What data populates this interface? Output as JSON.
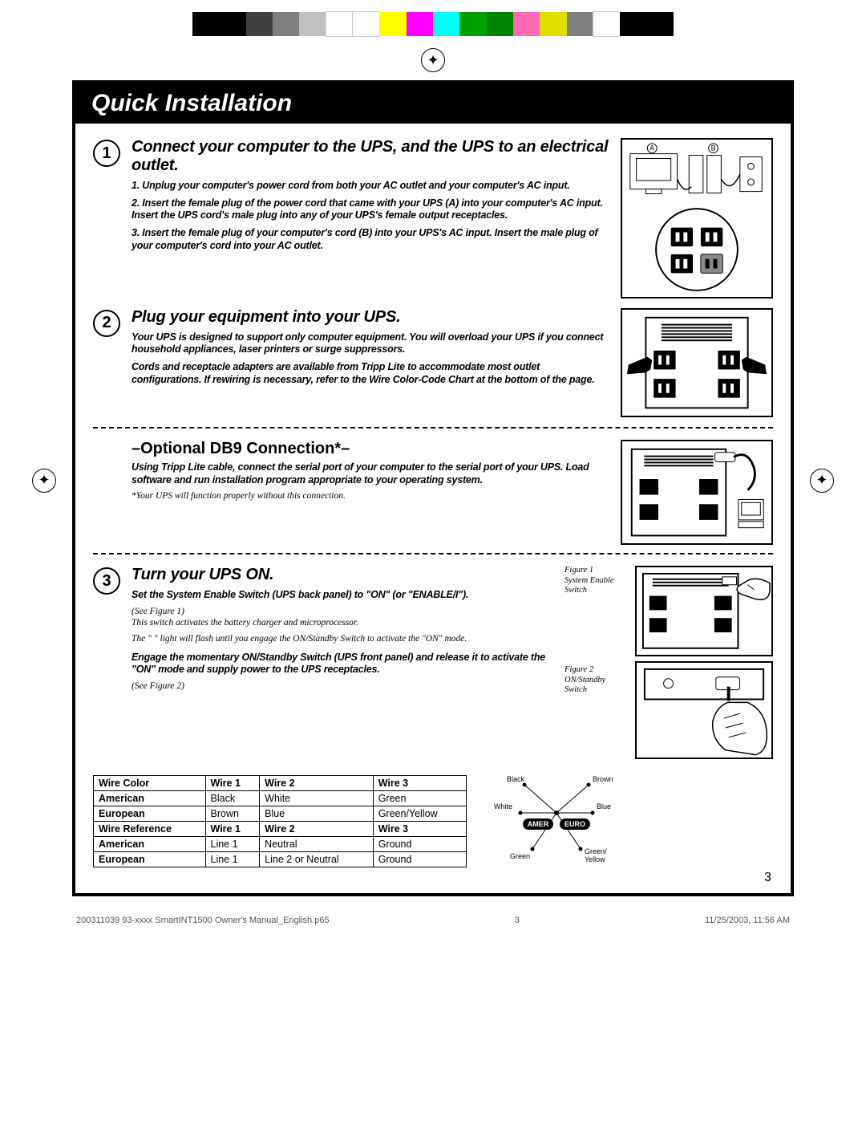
{
  "colorbar": {
    "colors": [
      "#000000",
      "#000000",
      "#404040",
      "#808080",
      "#c0c0c0",
      "#ffffff",
      "#ffffff",
      "#ffff00",
      "#ff00ff",
      "#00ffff",
      "#00a000",
      "#008000",
      "#ff69b4",
      "#e0e000",
      "#808080",
      "#ffffff",
      "#000000",
      "#000000"
    ]
  },
  "title": "Quick Installation",
  "step1": {
    "num": "1",
    "heading": "Connect your computer to the UPS, and the UPS to an electrical outlet.",
    "p1": "1.  Unplug your computer's power cord from both your AC outlet and your computer's AC input.",
    "p2": "2.  Insert the female plug of the power cord that came with your UPS (A) into your computer's AC input. Insert the UPS cord's male plug into any of your UPS's female output receptacles.",
    "p3": "3.  Insert the female plug of your computer's cord (B) into your UPS's AC input. Insert the male plug of your computer's cord into your AC outlet.",
    "labelA": "A",
    "labelB": "B"
  },
  "step2": {
    "num": "2",
    "heading": "Plug your equipment into your UPS.",
    "p1": "Your UPS is designed to support only computer equipment. You will overload your UPS if you connect household appliances, laser printers or surge suppressors.",
    "p2": "Cords and receptacle adapters are available from Tripp Lite to accommodate most outlet configurations. If rewiring is necessary, refer to the Wire Color-Code Chart at the bottom of the page."
  },
  "db9": {
    "heading": "–Optional DB9 Connection*–",
    "p1": "Using Tripp Lite cable, connect the serial port of your computer to the serial port of your UPS. Load software and run installation program appropriate to your operating system.",
    "note": "*Your UPS will function properly without this connection."
  },
  "step3": {
    "num": "3",
    "heading": "Turn your UPS ON.",
    "p1": "Set the System Enable Switch (UPS back panel) to \"ON\" (or \"ENABLE/I\").",
    "note1a": "(See Figure 1)",
    "note1b": "This switch activates the battery charger and microprocessor.",
    "note1c": "The \"     \" light will flash until you engage the ON/Standby Switch to activate the \"ON\" mode.",
    "p2": "Engage the momentary ON/Standby Switch (UPS front panel) and release it to activate the \"ON\" mode and supply power to the UPS receptacles.",
    "note2": "(See Figure 2)",
    "fig1_a": "Figure 1",
    "fig1_b": "System Enable Switch",
    "fig2_a": "Figure 2",
    "fig2_b": "ON/Standby Switch"
  },
  "table": {
    "headers1": [
      "Wire Color",
      "Wire 1",
      "Wire 2",
      "Wire 3"
    ],
    "r_american1": [
      "American",
      "Black",
      "White",
      "Green"
    ],
    "r_european1": [
      "European",
      "Brown",
      "Blue",
      "Green/Yellow"
    ],
    "headers2": [
      "Wire Reference",
      "Wire 1",
      "Wire 2",
      "Wire 3"
    ],
    "r_american2": [
      "American",
      "Line 1",
      "Neutral",
      "Ground"
    ],
    "r_european2": [
      "European",
      "Line 1",
      "Line 2 or Neutral",
      "Ground"
    ]
  },
  "wirefig": {
    "black": "Black",
    "brown": "Brown",
    "white": "White",
    "blue": "Blue",
    "green": "Green",
    "greenyellow": "Green/\nYellow",
    "amer": "AMER",
    "euro": "EURO"
  },
  "page_num": "3",
  "footer_left": "200311039 93-xxxx SmartINT1500 Owner's Manual_English.p65",
  "footer_mid": "3",
  "footer_right": "11/25/2003, 11:56 AM"
}
